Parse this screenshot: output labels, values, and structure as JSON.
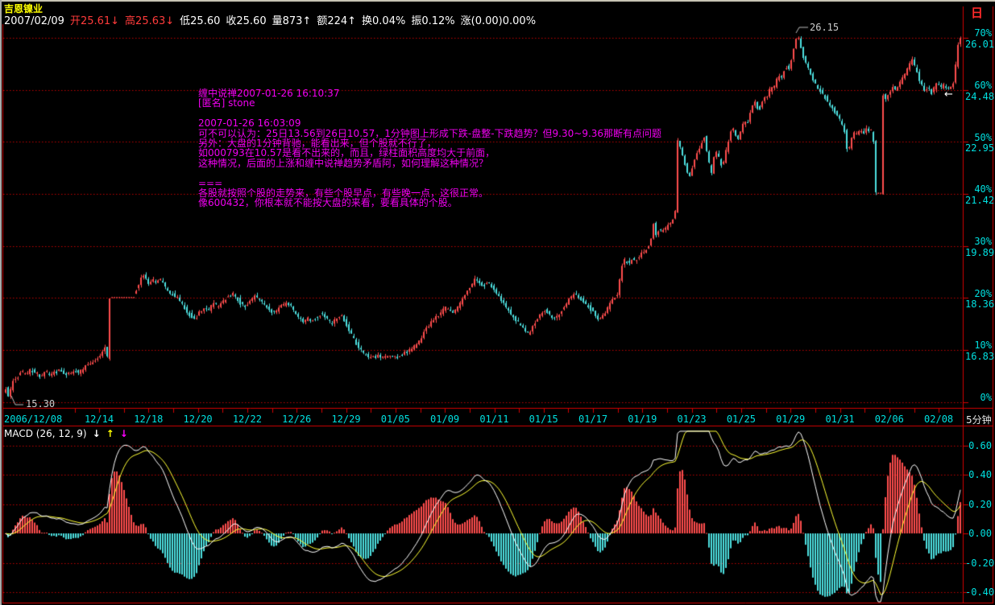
{
  "window": {
    "title": "吉恩镍业",
    "period_button": "日",
    "period_label": "5分钟"
  },
  "header": {
    "date": "2007/02/09",
    "stats": [
      {
        "key": "open",
        "text": "开25.61↓",
        "color": "#ff3b3b"
      },
      {
        "key": "high",
        "text": "高25.63↓",
        "color": "#ff3b3b"
      },
      {
        "key": "low",
        "text": "低25.60",
        "color": "#ffffff"
      },
      {
        "key": "close",
        "text": "收25.60",
        "color": "#ffffff"
      },
      {
        "key": "volume",
        "text": "量873↑",
        "color": "#ffffff"
      },
      {
        "key": "amount",
        "text": "额224↑",
        "color": "#ffffff"
      },
      {
        "key": "turnover",
        "text": "换0.04%",
        "color": "#ffffff"
      },
      {
        "key": "swing",
        "text": "振0.12%",
        "color": "#ffffff"
      },
      {
        "key": "change",
        "text": "涨(0.00)0.00%",
        "color": "#ffffff"
      }
    ]
  },
  "overlay_message": {
    "lines": [
      "缠中说禅2007-01-26 16:10:37",
      "[匿名] stone",
      "",
      "2007-01-26 16:03:09",
      "可不可以认为：25日13.56到26日10.57，1分钟图上形成下跌-盘整-下跌趋势？但9.30~9.36那断有点问题",
      "另外：大盘的1分钟背驰，能看出来，但个股就不行了，",
      "如000793在10.57是看不出来的，而且，绿柱面积高度均大于前面，",
      "这种情况，后面的上涨和缠中说禅趋势矛盾阿，如何理解这种情况？",
      "",
      "===",
      "各股就按照个股的走势来，有些个股早点，有些晚一点，这很正常。",
      "像600432，你根本就不能按大盘的来看，要看具体的个股。"
    ]
  },
  "price_axis": {
    "labels": [
      {
        "pct": "70%",
        "price": "26.01"
      },
      {
        "pct": "60%",
        "price": "24.48"
      },
      {
        "pct": "50%",
        "price": "22.95"
      },
      {
        "pct": "40%",
        "price": "21.42"
      },
      {
        "pct": "30%",
        "price": "19.89"
      },
      {
        "pct": "20%",
        "price": "18.36"
      },
      {
        "pct": "10%",
        "price": "16.83"
      },
      {
        "pct": "0%",
        "price": ""
      }
    ]
  },
  "x_axis": {
    "dates": [
      "2006/12/08",
      "12/14",
      "12/18",
      "12/20",
      "12/22",
      "12/26",
      "12/29",
      "01/05",
      "01/09",
      "01/11",
      "01/15",
      "01/17",
      "01/19",
      "01/23",
      "01/25",
      "01/29",
      "01/31",
      "02/06",
      "02/08"
    ]
  },
  "macd": {
    "label": "MACD (26, 12, 9)",
    "arrows": [
      {
        "name": "down-arrow-icon",
        "glyph": "↓",
        "color": "#ffffff"
      },
      {
        "name": "up-arrow-icon",
        "glyph": "↑",
        "color": "#ffff00"
      },
      {
        "name": "down-arrow-icon",
        "glyph": "↓",
        "color": "#ff00ff"
      }
    ],
    "axis": [
      "0.60",
      "0.40",
      "0.20",
      "0.00",
      "-0.20",
      "-0.40"
    ]
  },
  "annotations": {
    "high": "26.15",
    "low": "15.30",
    "pointer": "←"
  },
  "colors": {
    "up": "#ff4d4d",
    "down": "#4de0e0",
    "frame": "#d40000",
    "grid_dotted": "#c00000",
    "macd_dif": "#ffffff",
    "macd_dea": "#ffff33",
    "leader": "#bbbbbb"
  },
  "chart_data": {
    "type": "candlestick",
    "symbol": "吉恩镍业 (600432)",
    "period": "5分钟",
    "date_range": [
      "2006/12/08",
      "2007/02/09"
    ],
    "price_axis": {
      "base": 15.3,
      "pct_step_price": 0.153,
      "pct_ticks": [
        0,
        10,
        20,
        30,
        40,
        50,
        60,
        70
      ],
      "price_ticks": [
        16.83,
        18.36,
        19.89,
        21.42,
        22.95,
        24.48,
        26.01
      ]
    },
    "key_prices": {
      "open": 25.61,
      "high_session": 25.63,
      "low_session": 25.6,
      "close": 25.6,
      "chart_high": 26.15,
      "chart_low": 15.3
    },
    "macd_params": {
      "slow": 26,
      "fast": 12,
      "signal": 9,
      "axis_ticks": [
        0.6,
        0.4,
        0.2,
        0.0,
        -0.2,
        -0.4
      ]
    },
    "quiet_ranges": [
      [
        138,
        166
      ],
      [
        1089,
        1094
      ]
    ],
    "price_anchors": [
      [
        6,
        15.55
      ],
      [
        10,
        15.75
      ],
      [
        13,
        15.35
      ],
      [
        16,
        15.85
      ],
      [
        20,
        16.0
      ],
      [
        24,
        16.05
      ],
      [
        28,
        16.2
      ],
      [
        34,
        16.1
      ],
      [
        40,
        16.25
      ],
      [
        46,
        16.15
      ],
      [
        52,
        16.05
      ],
      [
        58,
        16.2
      ],
      [
        64,
        16.1
      ],
      [
        70,
        16.15
      ],
      [
        76,
        16.25
      ],
      [
        82,
        16.15
      ],
      [
        88,
        16.1
      ],
      [
        94,
        16.2
      ],
      [
        100,
        16.15
      ],
      [
        106,
        16.3
      ],
      [
        112,
        16.4
      ],
      [
        118,
        16.5
      ],
      [
        124,
        16.6
      ],
      [
        129,
        16.75
      ],
      [
        134,
        16.95
      ],
      [
        135,
        16.6
      ],
      [
        137,
        18.38
      ],
      [
        167,
        18.38
      ],
      [
        170,
        18.55
      ],
      [
        174,
        18.75
      ],
      [
        179,
        19.05
      ],
      [
        183,
        18.9
      ],
      [
        187,
        18.75
      ],
      [
        191,
        18.9
      ],
      [
        196,
        18.8
      ],
      [
        201,
        18.9
      ],
      [
        206,
        18.7
      ],
      [
        211,
        18.55
      ],
      [
        216,
        18.45
      ],
      [
        222,
        18.35
      ],
      [
        228,
        18.15
      ],
      [
        234,
        17.95
      ],
      [
        240,
        17.8
      ],
      [
        245,
        17.75
      ],
      [
        250,
        17.95
      ],
      [
        255,
        18.1
      ],
      [
        261,
        18.0
      ],
      [
        267,
        18.2
      ],
      [
        272,
        18.1
      ],
      [
        278,
        18.25
      ],
      [
        284,
        18.4
      ],
      [
        290,
        18.5
      ],
      [
        295,
        18.4
      ],
      [
        300,
        18.2
      ],
      [
        305,
        18.1
      ],
      [
        311,
        18.25
      ],
      [
        317,
        18.4
      ],
      [
        323,
        18.3
      ],
      [
        329,
        18.2
      ],
      [
        335,
        18.05
      ],
      [
        341,
        17.9
      ],
      [
        347,
        18.0
      ],
      [
        353,
        18.15
      ],
      [
        359,
        18.2
      ],
      [
        365,
        18.05
      ],
      [
        371,
        17.85
      ],
      [
        377,
        17.65
      ],
      [
        383,
        17.75
      ],
      [
        389,
        17.7
      ],
      [
        395,
        17.8
      ],
      [
        401,
        17.9
      ],
      [
        407,
        17.75
      ],
      [
        413,
        17.6
      ],
      [
        419,
        17.75
      ],
      [
        425,
        17.85
      ],
      [
        430,
        17.65
      ],
      [
        436,
        17.35
      ],
      [
        442,
        17.1
      ],
      [
        448,
        16.85
      ],
      [
        455,
        16.7
      ],
      [
        462,
        16.6
      ],
      [
        470,
        16.65
      ],
      [
        478,
        16.58
      ],
      [
        486,
        16.65
      ],
      [
        494,
        16.6
      ],
      [
        501,
        16.7
      ],
      [
        508,
        16.78
      ],
      [
        514,
        16.88
      ],
      [
        520,
        17.0
      ],
      [
        526,
        17.25
      ],
      [
        532,
        17.5
      ],
      [
        538,
        17.65
      ],
      [
        544,
        17.8
      ],
      [
        550,
        17.95
      ],
      [
        556,
        18.1
      ],
      [
        560,
        18.0
      ],
      [
        564,
        17.9
      ],
      [
        569,
        18.05
      ],
      [
        574,
        18.25
      ],
      [
        580,
        18.45
      ],
      [
        586,
        18.7
      ],
      [
        592,
        18.95
      ],
      [
        597,
        18.82
      ],
      [
        602,
        18.7
      ],
      [
        607,
        18.85
      ],
      [
        612,
        18.68
      ],
      [
        618,
        18.5
      ],
      [
        624,
        18.3
      ],
      [
        630,
        18.1
      ],
      [
        636,
        17.9
      ],
      [
        642,
        17.72
      ],
      [
        648,
        17.55
      ],
      [
        654,
        17.38
      ],
      [
        658,
        17.3
      ],
      [
        663,
        17.5
      ],
      [
        668,
        17.7
      ],
      [
        673,
        17.9
      ],
      [
        678,
        18.0
      ],
      [
        684,
        17.85
      ],
      [
        690,
        17.75
      ],
      [
        696,
        17.9
      ],
      [
        702,
        18.1
      ],
      [
        708,
        18.3
      ],
      [
        714,
        18.5
      ],
      [
        720,
        18.4
      ],
      [
        726,
        18.25
      ],
      [
        732,
        18.1
      ],
      [
        738,
        17.95
      ],
      [
        744,
        17.72
      ],
      [
        750,
        17.85
      ],
      [
        756,
        18.05
      ],
      [
        762,
        18.3
      ],
      [
        768,
        18.45
      ],
      [
        771,
        18.9
      ],
      [
        774,
        19.35
      ],
      [
        778,
        19.5
      ],
      [
        782,
        19.35
      ],
      [
        786,
        19.5
      ],
      [
        790,
        19.4
      ],
      [
        794,
        19.55
      ],
      [
        798,
        19.65
      ],
      [
        803,
        19.75
      ],
      [
        807,
        19.9
      ],
      [
        811,
        20.2
      ],
      [
        813,
        20.55
      ],
      [
        816,
        20.25
      ],
      [
        820,
        20.35
      ],
      [
        824,
        20.3
      ],
      [
        828,
        20.4
      ],
      [
        832,
        20.5
      ],
      [
        836,
        20.65
      ],
      [
        840,
        20.9
      ],
      [
        843,
        23.0
      ],
      [
        846,
        22.8
      ],
      [
        850,
        22.45
      ],
      [
        854,
        22.1
      ],
      [
        857,
        21.9
      ],
      [
        861,
        22.2
      ],
      [
        865,
        22.5
      ],
      [
        869,
        22.7
      ],
      [
        873,
        22.95
      ],
      [
        876,
        23.1
      ],
      [
        879,
        22.7
      ],
      [
        882,
        22.3
      ],
      [
        884,
        21.85
      ],
      [
        887,
        22.4
      ],
      [
        890,
        22.7
      ],
      [
        893,
        22.55
      ],
      [
        896,
        22.35
      ],
      [
        899,
        22.2
      ],
      [
        902,
        22.6
      ],
      [
        905,
        22.9
      ],
      [
        908,
        23.2
      ],
      [
        911,
        23.4
      ],
      [
        914,
        23.2
      ],
      [
        917,
        22.95
      ],
      [
        920,
        23.15
      ],
      [
        923,
        23.4
      ],
      [
        926,
        23.6
      ],
      [
        929,
        23.45
      ],
      [
        932,
        23.7
      ],
      [
        935,
        23.95
      ],
      [
        938,
        24.2
      ],
      [
        941,
        24.0
      ],
      [
        944,
        23.85
      ],
      [
        947,
        24.1
      ],
      [
        950,
        24.3
      ],
      [
        953,
        24.15
      ],
      [
        956,
        24.4
      ],
      [
        959,
        24.6
      ],
      [
        962,
        24.5
      ],
      [
        965,
        24.7
      ],
      [
        968,
        24.9
      ],
      [
        971,
        24.78
      ],
      [
        974,
        25.0
      ],
      [
        977,
        25.2
      ],
      [
        980,
        25.05
      ],
      [
        983,
        25.3
      ],
      [
        986,
        25.6
      ],
      [
        989,
        25.9
      ],
      [
        992,
        26.08
      ],
      [
        995,
        25.8
      ],
      [
        998,
        25.55
      ],
      [
        1001,
        25.3
      ],
      [
        1005,
        25.1
      ],
      [
        1009,
        24.9
      ],
      [
        1013,
        24.7
      ],
      [
        1017,
        24.5
      ],
      [
        1021,
        24.45
      ],
      [
        1025,
        24.3
      ],
      [
        1029,
        24.15
      ],
      [
        1033,
        24.0
      ],
      [
        1037,
        23.85
      ],
      [
        1041,
        23.7
      ],
      [
        1045,
        23.55
      ],
      [
        1049,
        23.35
      ],
      [
        1052,
        23.1
      ],
      [
        1054,
        22.4
      ],
      [
        1057,
        22.95
      ],
      [
        1061,
        23.25
      ],
      [
        1065,
        23.15
      ],
      [
        1069,
        23.3
      ],
      [
        1073,
        23.2
      ],
      [
        1077,
        23.35
      ],
      [
        1081,
        23.25
      ],
      [
        1085,
        23.3
      ],
      [
        1087,
        22.6
      ],
      [
        1088,
        21.45
      ],
      [
        1095,
        21.45
      ],
      [
        1098,
        24.35
      ],
      [
        1102,
        24.2
      ],
      [
        1106,
        24.4
      ],
      [
        1110,
        24.55
      ],
      [
        1114,
        24.45
      ],
      [
        1118,
        24.65
      ],
      [
        1122,
        24.8
      ],
      [
        1126,
        25.0
      ],
      [
        1130,
        25.2
      ],
      [
        1134,
        25.35
      ],
      [
        1138,
        25.1
      ],
      [
        1142,
        24.85
      ],
      [
        1146,
        24.6
      ],
      [
        1150,
        24.45
      ],
      [
        1154,
        24.55
      ],
      [
        1158,
        24.4
      ],
      [
        1162,
        24.55
      ],
      [
        1166,
        24.7
      ],
      [
        1170,
        24.55
      ],
      [
        1174,
        24.65
      ],
      [
        1178,
        24.5
      ],
      [
        1182,
        24.6
      ],
      [
        1186,
        24.75
      ],
      [
        1189,
        25.4
      ],
      [
        1191,
        25.8
      ],
      [
        1194,
        26.05
      ]
    ]
  }
}
